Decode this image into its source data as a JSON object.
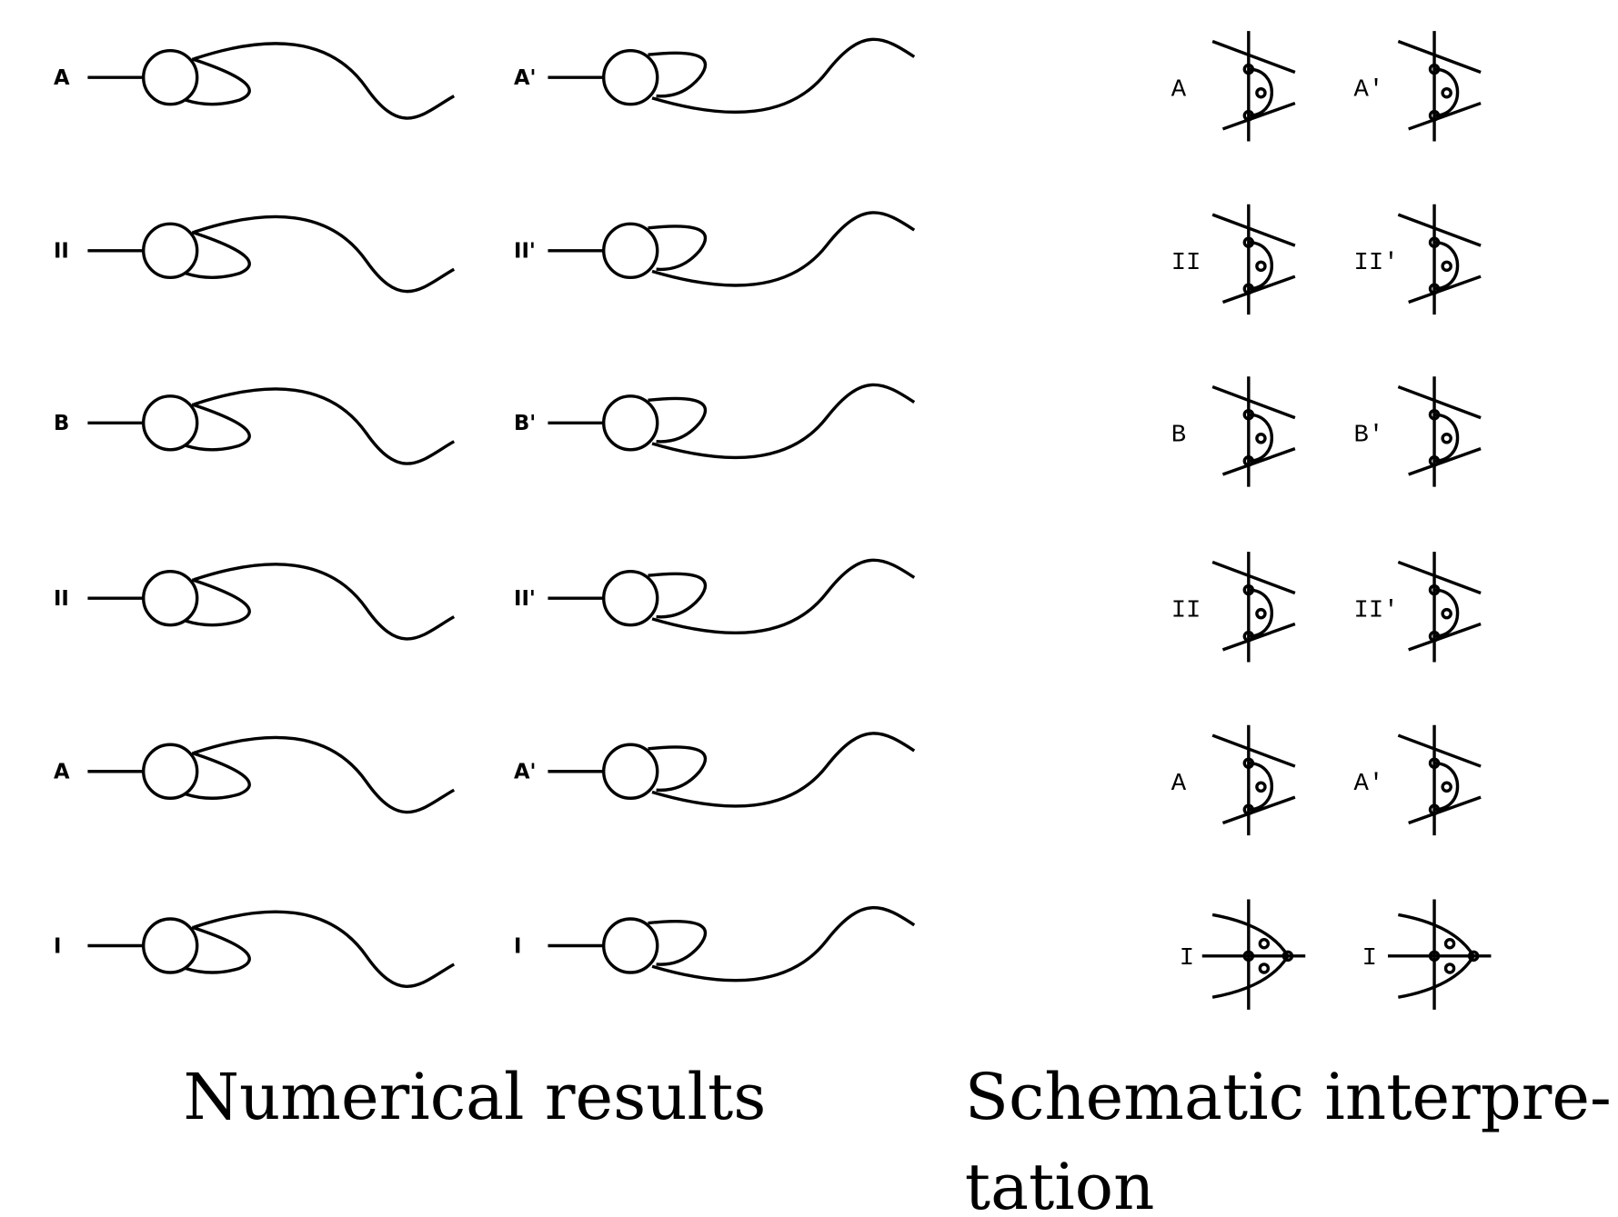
{
  "numerical": {
    "rows": [
      [
        "A",
        "A'"
      ],
      [
        "II",
        "II'"
      ],
      [
        "B",
        "B'"
      ],
      [
        "II",
        "II'"
      ],
      [
        "A",
        "A'"
      ],
      [
        "I",
        "I"
      ]
    ],
    "caption": "Numerical results"
  },
  "schematic": {
    "rows": [
      [
        "A",
        "A′"
      ],
      [
        "II",
        "II′"
      ],
      [
        "B",
        "B′"
      ],
      [
        "II",
        "II′"
      ],
      [
        "A",
        "A′"
      ],
      [
        "I",
        "I"
      ]
    ],
    "caption": [
      "Schematic  interpre-",
      "tation"
    ]
  }
}
